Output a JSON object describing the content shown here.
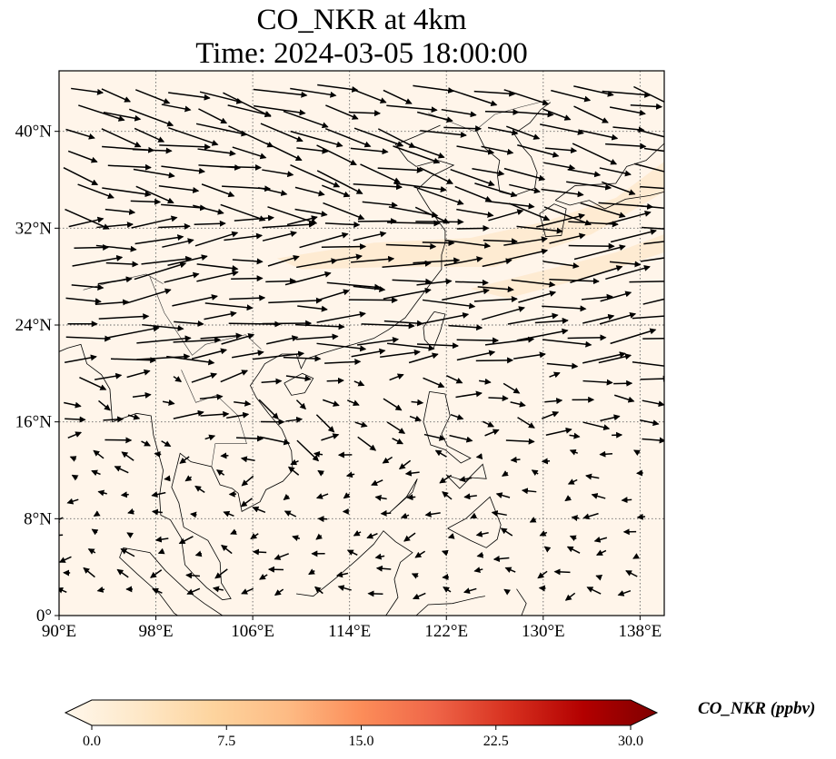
{
  "title": {
    "line1": "CO_NKR at 4km",
    "line2": "Time: 2024-03-05 18:00:00"
  },
  "map": {
    "projection": "PlateCarree",
    "lon_range": [
      90,
      140
    ],
    "lat_range": [
      0,
      45
    ],
    "gridlines": "dotted",
    "background_fill_color": "#fff5ea",
    "coastline_color": "#000000",
    "plume_color": "#fde7c9",
    "lon_ticks": [
      {
        "value": 90,
        "label": "90°E"
      },
      {
        "value": 98,
        "label": "98°E"
      },
      {
        "value": 106,
        "label": "106°E"
      },
      {
        "value": 114,
        "label": "114°E"
      },
      {
        "value": 122,
        "label": "122°E"
      },
      {
        "value": 130,
        "label": "130°E"
      },
      {
        "value": 138,
        "label": "138°E"
      }
    ],
    "lat_ticks": [
      {
        "value": 0,
        "label": "0°"
      },
      {
        "value": 8,
        "label": "8°N"
      },
      {
        "value": 16,
        "label": "16°N"
      },
      {
        "value": 24,
        "label": "24°N"
      },
      {
        "value": 32,
        "label": "32°N"
      },
      {
        "value": 40,
        "label": "40°N"
      }
    ],
    "wind_field": "westerly winds north of ~18°N, weak variable winds in the tropics"
  },
  "colorbar": {
    "label": "CO_NKR (ppbv)",
    "colormap": "OrRd",
    "extend": "both",
    "min": 0,
    "max": 30,
    "ticks": [
      "0.0",
      "7.5",
      "15.0",
      "22.5",
      "30.0"
    ],
    "stops": [
      "#fff7ec",
      "#fee8c8",
      "#fdd49e",
      "#fdbb84",
      "#fc8d59",
      "#ef6548",
      "#d7301f",
      "#b30000",
      "#7f0000"
    ]
  }
}
